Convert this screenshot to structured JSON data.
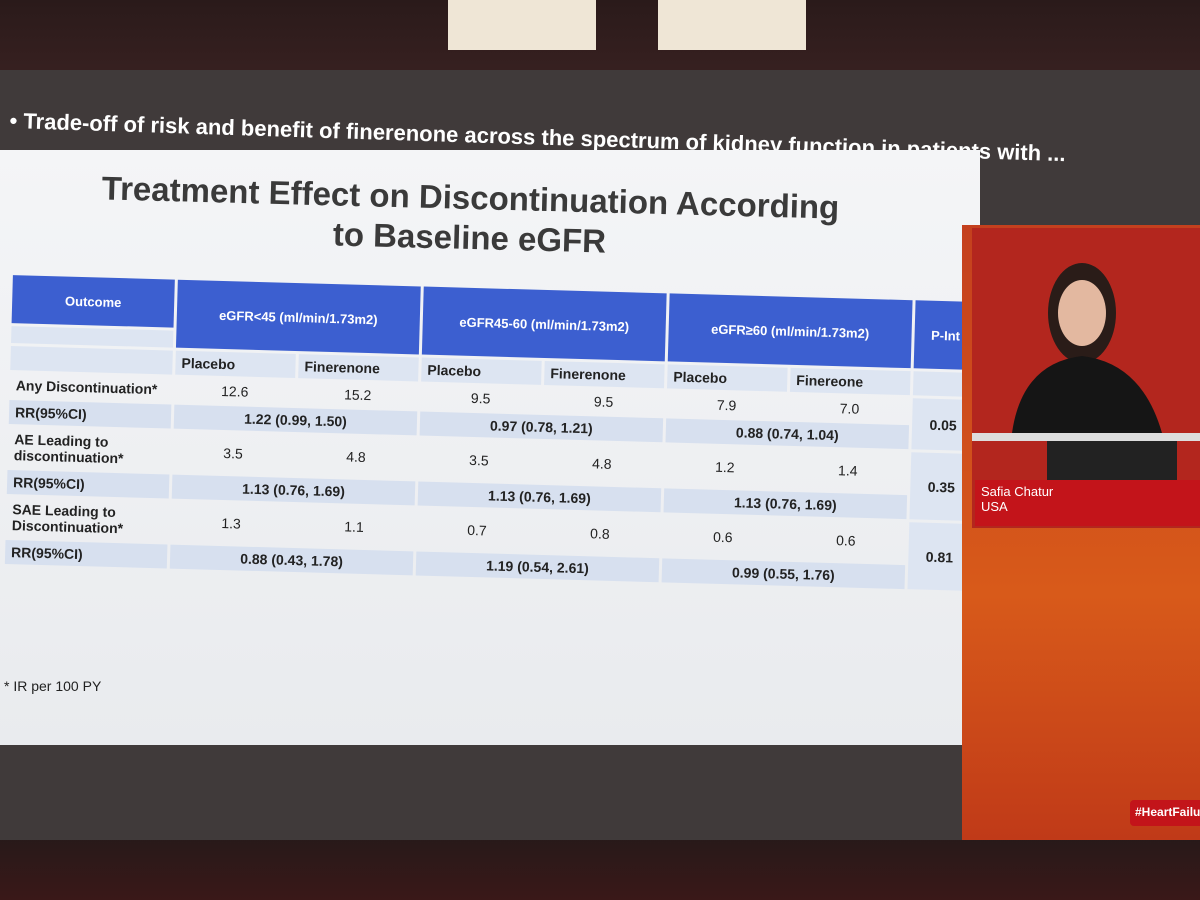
{
  "header": {
    "title": "Trade-off of risk and benefit of finerenone across the spectrum of kidney function in patients with ..."
  },
  "slide": {
    "title": "Treatment Effect on Discontinuation According to Baseline eGFR",
    "table": {
      "outcome_header": "Outcome",
      "groups": [
        "eGFR<45 (ml/min/1.73m2)",
        "eGFR45-60 (ml/min/1.73m2)",
        "eGFR≥60 (ml/min/1.73m2)"
      ],
      "p_header": "P-Int",
      "subheaders": [
        "Placebo",
        "Finerenone",
        "Placebo",
        "Finerenone",
        "Placebo",
        "Finereone"
      ],
      "rows": [
        {
          "label": "Any Discontinuation*",
          "values": [
            "12.6",
            "15.2",
            "9.5",
            "9.5",
            "7.9",
            "7.0"
          ],
          "rr_label": "RR(95%CI)",
          "rr": [
            "1.22 (0.99, 1.50)",
            "0.97 (0.78, 1.21)",
            "0.88 (0.74, 1.04)"
          ],
          "p_int": "0.05"
        },
        {
          "label": "AE Leading to discontinuation*",
          "values": [
            "3.5",
            "4.8",
            "3.5",
            "4.8",
            "1.2",
            "1.4"
          ],
          "rr_label": "RR(95%CI)",
          "rr": [
            "1.13 (0.76, 1.69)",
            "1.13 (0.76, 1.69)",
            "1.13 (0.76, 1.69)"
          ],
          "p_int": "0.35"
        },
        {
          "label": "SAE Leading to Discontinuation*",
          "values": [
            "1.3",
            "1.1",
            "0.7",
            "0.8",
            "0.6",
            "0.6"
          ],
          "rr_label": "RR(95%CI)",
          "rr": [
            "0.88 (0.43, 1.78)",
            "1.19 (0.54, 2.61)",
            "0.99 (0.55, 1.76)"
          ],
          "p_int": "0.81"
        }
      ]
    },
    "footnote": "* IR per 100 PY"
  },
  "speaker": {
    "name": "Safia Chatur",
    "location": "USA",
    "hashtag": "#HeartFailure"
  }
}
